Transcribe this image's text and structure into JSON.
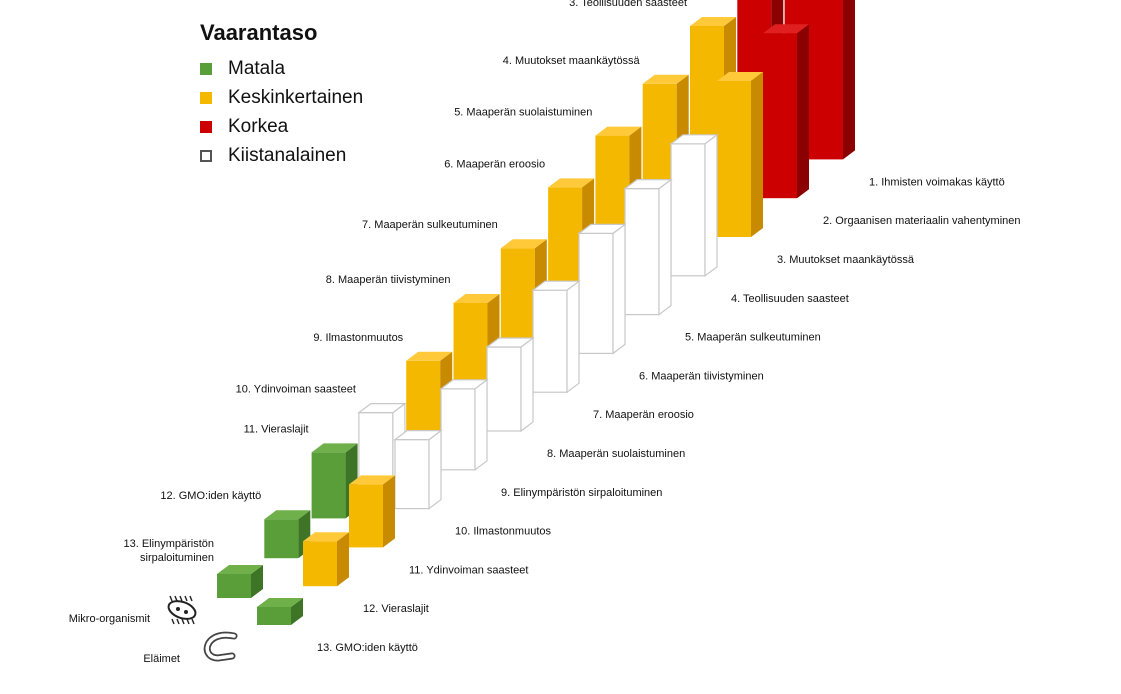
{
  "chart_data": {
    "type": "bar",
    "title": "",
    "legend": {
      "title": "Vaarantaso",
      "placement": "top-left",
      "items": [
        {
          "level": "low",
          "label": "Matala",
          "color": "#5a9e3a"
        },
        {
          "level": "medium",
          "label": "Keskinkertainen",
          "color": "#f5b800"
        },
        {
          "level": "high",
          "label": "Korkea",
          "color": "#cc0000"
        },
        {
          "level": "disputed",
          "label": "Kiistanalainen",
          "color": "#ffffff"
        }
      ]
    },
    "organism_groups": [
      {
        "name": "Mikro-organismit",
        "icon": "bacterium-icon"
      },
      {
        "name": "Eläimet",
        "icon": "worm-icon"
      }
    ],
    "series": [
      {
        "group": "Mikro-organismit",
        "items": [
          {
            "rank": 1,
            "label": "1. Ihmisten voimakas kaytto",
            "level": "high",
            "height": 7.3
          },
          {
            "rank": 2,
            "label": "2. Orgaanisen materiaalin vähentyminen",
            "level": "high",
            "height": 5.9
          },
          {
            "rank": 3,
            "label": "3. Teollisuuden saasteet",
            "level": "medium",
            "height": 5.8
          },
          {
            "rank": 4,
            "label": "4. Muutokset maankäytössä",
            "level": "medium",
            "height": 5.2
          },
          {
            "rank": 5,
            "label": "5. Maaperän suolaistuminen",
            "level": "medium",
            "height": 4.8
          },
          {
            "rank": 6,
            "label": "6. Maaperän eroosio",
            "level": "medium",
            "height": 4.4
          },
          {
            "rank": 7,
            "label": "7. Maaperän sulkeutuminen",
            "level": "medium",
            "height": 3.7
          },
          {
            "rank": 8,
            "label": "8. Maaperän tiivistyminen",
            "level": "medium",
            "height": 3.2
          },
          {
            "rank": 9,
            "label": "9. Ilmastonmuutos",
            "level": "medium",
            "height": 2.6
          },
          {
            "rank": 10,
            "label": "10. Ydinvoiman saasteet",
            "level": "disputed",
            "height": 2.2
          },
          {
            "rank": 11,
            "label": "11. Vieraslajit",
            "level": "low",
            "height": 2.2
          },
          {
            "rank": 12,
            "label": "12. GMO:iden käyttö",
            "level": "low",
            "height": 1.3
          },
          {
            "rank": 13,
            "label": "13. Elinympäristön sirpaloituminen",
            "level": "low",
            "height": 0.8
          }
        ]
      },
      {
        "group": "Eläimet",
        "items": [
          {
            "rank": 1,
            "label": "1. Ihmisten voimakas käyttö",
            "level": "high",
            "height": 6.6
          },
          {
            "rank": 2,
            "label": "2. Orgaanisen materiaalin vahentyminen",
            "level": "high",
            "height": 5.5
          },
          {
            "rank": 3,
            "label": "3. Muutokset maankäytössä",
            "level": "medium",
            "height": 5.2
          },
          {
            "rank": 4,
            "label": "4. Teollisuuden saasteet",
            "level": "disputed",
            "height": 4.4
          },
          {
            "rank": 5,
            "label": "5. Maaperän sulkeutuminen",
            "level": "disputed",
            "height": 4.2
          },
          {
            "rank": 6,
            "label": "6. Maaperän tiivistyminen",
            "level": "disputed",
            "height": 4.0
          },
          {
            "rank": 7,
            "label": "7. Maaperän eroosio",
            "level": "disputed",
            "height": 3.4
          },
          {
            "rank": 8,
            "label": "8. Maaperän suolaistuminen",
            "level": "disputed",
            "height": 2.8
          },
          {
            "rank": 9,
            "label": "9. Elinympäristön sirpaloituminen",
            "level": "disputed",
            "height": 2.7
          },
          {
            "rank": 10,
            "label": "10. Ilmastonmuutos",
            "level": "disputed",
            "height": 2.3
          },
          {
            "rank": 11,
            "label": "11. Ydinvoiman saasteet",
            "level": "medium",
            "height": 2.1
          },
          {
            "rank": 12,
            "label": "12. Vieraslajit",
            "level": "medium",
            "height": 1.5
          },
          {
            "rank": 13,
            "label": "13. GMO:iden käyttö",
            "level": "low",
            "height": 0.6
          }
        ]
      }
    ],
    "colors": {
      "high": {
        "front": "#cc0000",
        "side": "#8b0000",
        "top": "#e02020"
      },
      "medium": {
        "front": "#f5b800",
        "side": "#c88a00",
        "top": "#ffc93a"
      },
      "low": {
        "front": "#5a9e3a",
        "side": "#3d7426",
        "top": "#6fb04a"
      },
      "disputed": {
        "front": "#ffffff",
        "side": "#ffffff",
        "top": "#ffffff",
        "stroke": "#c8c8c8"
      }
    }
  }
}
